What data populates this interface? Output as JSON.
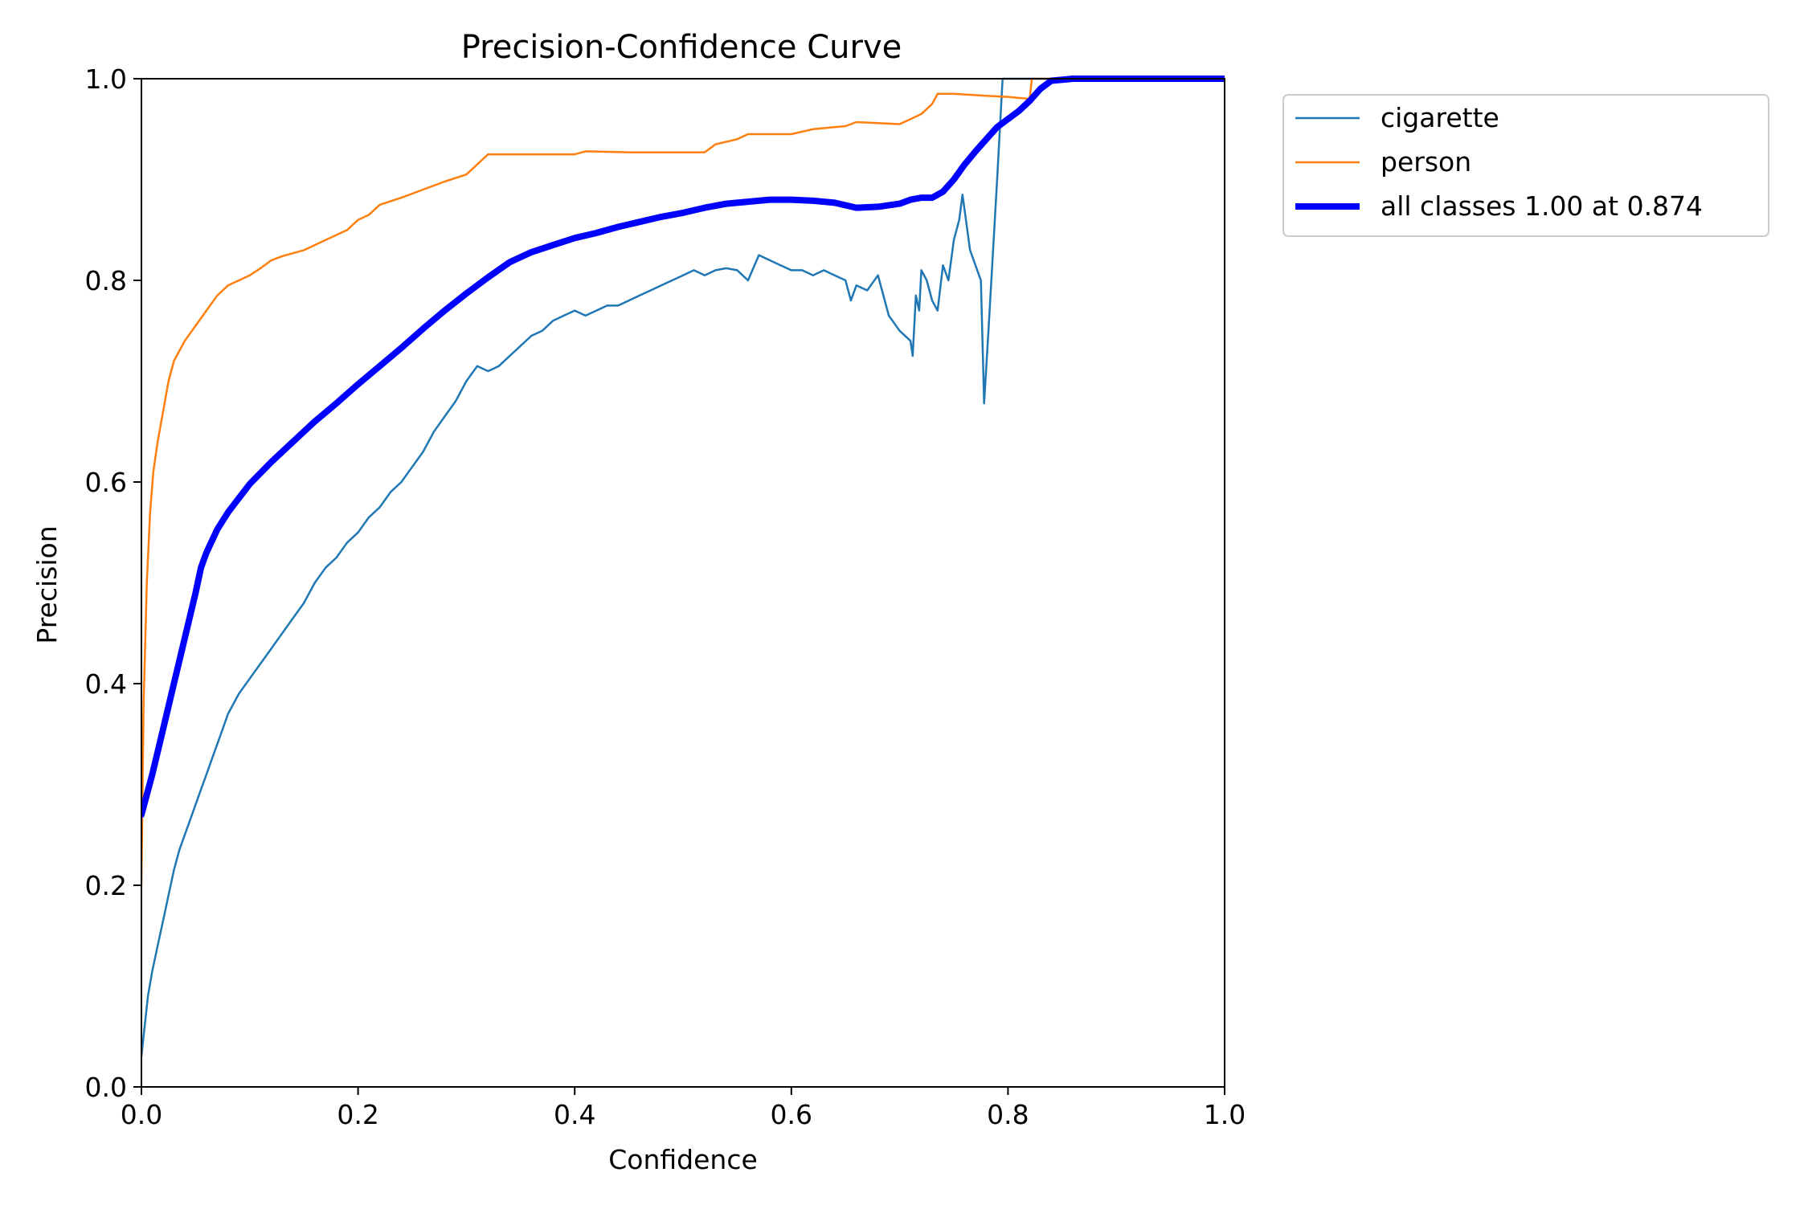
{
  "chart_data": {
    "type": "line",
    "title": "Precision-Confidence Curve",
    "xlabel": "Confidence",
    "ylabel": "Precision",
    "xlim": [
      0.0,
      1.0
    ],
    "ylim": [
      0.0,
      1.0
    ],
    "xticks": [
      0.0,
      0.2,
      0.4,
      0.6,
      0.8,
      1.0
    ],
    "yticks": [
      0.0,
      0.2,
      0.4,
      0.6,
      0.8,
      1.0
    ],
    "xtick_labels": [
      "0.0",
      "0.2",
      "0.4",
      "0.6",
      "0.8",
      "1.0"
    ],
    "ytick_labels": [
      "0.0",
      "0.2",
      "0.4",
      "0.6",
      "0.8",
      "1.0"
    ],
    "grid": false,
    "legend_position": "outside-top-right",
    "series": [
      {
        "name": "cigarette",
        "legend_label": "cigarette",
        "color": "#1f77b4",
        "weight": "thin",
        "points": [
          [
            0.0,
            0.03
          ],
          [
            0.003,
            0.06
          ],
          [
            0.006,
            0.09
          ],
          [
            0.01,
            0.115
          ],
          [
            0.015,
            0.14
          ],
          [
            0.02,
            0.165
          ],
          [
            0.025,
            0.19
          ],
          [
            0.03,
            0.215
          ],
          [
            0.035,
            0.235
          ],
          [
            0.04,
            0.25
          ],
          [
            0.045,
            0.265
          ],
          [
            0.05,
            0.28
          ],
          [
            0.055,
            0.295
          ],
          [
            0.06,
            0.31
          ],
          [
            0.065,
            0.325
          ],
          [
            0.07,
            0.34
          ],
          [
            0.075,
            0.355
          ],
          [
            0.08,
            0.37
          ],
          [
            0.09,
            0.39
          ],
          [
            0.1,
            0.405
          ],
          [
            0.11,
            0.42
          ],
          [
            0.12,
            0.435
          ],
          [
            0.13,
            0.45
          ],
          [
            0.14,
            0.465
          ],
          [
            0.15,
            0.48
          ],
          [
            0.16,
            0.5
          ],
          [
            0.17,
            0.515
          ],
          [
            0.18,
            0.525
          ],
          [
            0.19,
            0.54
          ],
          [
            0.2,
            0.55
          ],
          [
            0.21,
            0.565
          ],
          [
            0.22,
            0.575
          ],
          [
            0.23,
            0.59
          ],
          [
            0.24,
            0.6
          ],
          [
            0.25,
            0.615
          ],
          [
            0.26,
            0.63
          ],
          [
            0.27,
            0.65
          ],
          [
            0.28,
            0.665
          ],
          [
            0.29,
            0.68
          ],
          [
            0.3,
            0.7
          ],
          [
            0.31,
            0.715
          ],
          [
            0.32,
            0.71
          ],
          [
            0.33,
            0.715
          ],
          [
            0.34,
            0.725
          ],
          [
            0.35,
            0.735
          ],
          [
            0.36,
            0.745
          ],
          [
            0.37,
            0.75
          ],
          [
            0.38,
            0.76
          ],
          [
            0.39,
            0.765
          ],
          [
            0.4,
            0.77
          ],
          [
            0.41,
            0.765
          ],
          [
            0.42,
            0.77
          ],
          [
            0.43,
            0.775
          ],
          [
            0.44,
            0.775
          ],
          [
            0.45,
            0.78
          ],
          [
            0.46,
            0.785
          ],
          [
            0.47,
            0.79
          ],
          [
            0.48,
            0.795
          ],
          [
            0.49,
            0.8
          ],
          [
            0.5,
            0.805
          ],
          [
            0.51,
            0.81
          ],
          [
            0.52,
            0.805
          ],
          [
            0.53,
            0.81
          ],
          [
            0.54,
            0.812
          ],
          [
            0.55,
            0.81
          ],
          [
            0.56,
            0.8
          ],
          [
            0.57,
            0.825
          ],
          [
            0.58,
            0.82
          ],
          [
            0.59,
            0.815
          ],
          [
            0.6,
            0.81
          ],
          [
            0.61,
            0.81
          ],
          [
            0.62,
            0.805
          ],
          [
            0.63,
            0.81
          ],
          [
            0.64,
            0.805
          ],
          [
            0.65,
            0.8
          ],
          [
            0.655,
            0.78
          ],
          [
            0.66,
            0.795
          ],
          [
            0.67,
            0.79
          ],
          [
            0.68,
            0.805
          ],
          [
            0.69,
            0.765
          ],
          [
            0.7,
            0.75
          ],
          [
            0.71,
            0.74
          ],
          [
            0.712,
            0.725
          ],
          [
            0.715,
            0.785
          ],
          [
            0.718,
            0.77
          ],
          [
            0.72,
            0.81
          ],
          [
            0.725,
            0.8
          ],
          [
            0.73,
            0.78
          ],
          [
            0.735,
            0.77
          ],
          [
            0.74,
            0.815
          ],
          [
            0.745,
            0.8
          ],
          [
            0.75,
            0.84
          ],
          [
            0.755,
            0.86
          ],
          [
            0.758,
            0.885
          ],
          [
            0.765,
            0.83
          ],
          [
            0.775,
            0.8
          ],
          [
            0.778,
            0.678
          ],
          [
            0.782,
            0.75
          ],
          [
            0.79,
            0.9
          ],
          [
            0.795,
            1.0
          ],
          [
            0.8,
            1.0
          ],
          [
            0.9,
            1.0
          ],
          [
            1.0,
            1.0
          ]
        ]
      },
      {
        "name": "person",
        "legend_label": "person",
        "color": "#ff7f0e",
        "weight": "thin",
        "points": [
          [
            0.0,
            0.2
          ],
          [
            0.002,
            0.38
          ],
          [
            0.005,
            0.5
          ],
          [
            0.008,
            0.57
          ],
          [
            0.011,
            0.61
          ],
          [
            0.015,
            0.64
          ],
          [
            0.02,
            0.67
          ],
          [
            0.025,
            0.7
          ],
          [
            0.03,
            0.72
          ],
          [
            0.04,
            0.74
          ],
          [
            0.05,
            0.755
          ],
          [
            0.06,
            0.77
          ],
          [
            0.07,
            0.785
          ],
          [
            0.08,
            0.795
          ],
          [
            0.09,
            0.8
          ],
          [
            0.1,
            0.805
          ],
          [
            0.11,
            0.812
          ],
          [
            0.12,
            0.82
          ],
          [
            0.13,
            0.824
          ],
          [
            0.15,
            0.83
          ],
          [
            0.17,
            0.84
          ],
          [
            0.19,
            0.85
          ],
          [
            0.2,
            0.86
          ],
          [
            0.21,
            0.865
          ],
          [
            0.22,
            0.875
          ],
          [
            0.24,
            0.882
          ],
          [
            0.26,
            0.89
          ],
          [
            0.28,
            0.898
          ],
          [
            0.3,
            0.905
          ],
          [
            0.31,
            0.915
          ],
          [
            0.32,
            0.925
          ],
          [
            0.35,
            0.925
          ],
          [
            0.4,
            0.925
          ],
          [
            0.41,
            0.928
          ],
          [
            0.45,
            0.927
          ],
          [
            0.5,
            0.927
          ],
          [
            0.52,
            0.927
          ],
          [
            0.53,
            0.935
          ],
          [
            0.55,
            0.94
          ],
          [
            0.56,
            0.945
          ],
          [
            0.6,
            0.945
          ],
          [
            0.62,
            0.95
          ],
          [
            0.64,
            0.952
          ],
          [
            0.65,
            0.953
          ],
          [
            0.66,
            0.957
          ],
          [
            0.7,
            0.955
          ],
          [
            0.71,
            0.96
          ],
          [
            0.72,
            0.965
          ],
          [
            0.73,
            0.975
          ],
          [
            0.735,
            0.985
          ],
          [
            0.75,
            0.985
          ],
          [
            0.78,
            0.983
          ],
          [
            0.8,
            0.982
          ],
          [
            0.82,
            0.98
          ],
          [
            0.822,
            1.0
          ],
          [
            0.83,
            1.0
          ],
          [
            0.9,
            1.0
          ],
          [
            1.0,
            1.0
          ]
        ]
      },
      {
        "name": "all classes",
        "legend_label": "all classes 1.00 at 0.874",
        "color": "#0000ff",
        "weight": "thick",
        "points": [
          [
            0.0,
            0.27
          ],
          [
            0.01,
            0.31
          ],
          [
            0.02,
            0.355
          ],
          [
            0.03,
            0.4
          ],
          [
            0.04,
            0.445
          ],
          [
            0.05,
            0.49
          ],
          [
            0.055,
            0.515
          ],
          [
            0.06,
            0.53
          ],
          [
            0.07,
            0.553
          ],
          [
            0.08,
            0.57
          ],
          [
            0.1,
            0.598
          ],
          [
            0.12,
            0.62
          ],
          [
            0.14,
            0.64
          ],
          [
            0.16,
            0.66
          ],
          [
            0.18,
            0.678
          ],
          [
            0.2,
            0.697
          ],
          [
            0.22,
            0.715
          ],
          [
            0.24,
            0.733
          ],
          [
            0.26,
            0.752
          ],
          [
            0.28,
            0.77
          ],
          [
            0.3,
            0.787
          ],
          [
            0.32,
            0.803
          ],
          [
            0.34,
            0.818
          ],
          [
            0.36,
            0.828
          ],
          [
            0.38,
            0.835
          ],
          [
            0.4,
            0.842
          ],
          [
            0.42,
            0.847
          ],
          [
            0.44,
            0.853
          ],
          [
            0.46,
            0.858
          ],
          [
            0.48,
            0.863
          ],
          [
            0.5,
            0.867
          ],
          [
            0.52,
            0.872
          ],
          [
            0.54,
            0.876
          ],
          [
            0.56,
            0.878
          ],
          [
            0.58,
            0.88
          ],
          [
            0.6,
            0.88
          ],
          [
            0.62,
            0.879
          ],
          [
            0.64,
            0.877
          ],
          [
            0.66,
            0.872
          ],
          [
            0.68,
            0.873
          ],
          [
            0.7,
            0.876
          ],
          [
            0.71,
            0.88
          ],
          [
            0.72,
            0.882
          ],
          [
            0.73,
            0.882
          ],
          [
            0.74,
            0.888
          ],
          [
            0.75,
            0.9
          ],
          [
            0.76,
            0.915
          ],
          [
            0.77,
            0.928
          ],
          [
            0.78,
            0.94
          ],
          [
            0.79,
            0.952
          ],
          [
            0.8,
            0.96
          ],
          [
            0.81,
            0.968
          ],
          [
            0.82,
            0.978
          ],
          [
            0.83,
            0.99
          ],
          [
            0.84,
            0.998
          ],
          [
            0.86,
            1.0
          ],
          [
            0.874,
            1.0
          ],
          [
            0.9,
            1.0
          ],
          [
            1.0,
            1.0
          ]
        ]
      }
    ]
  }
}
